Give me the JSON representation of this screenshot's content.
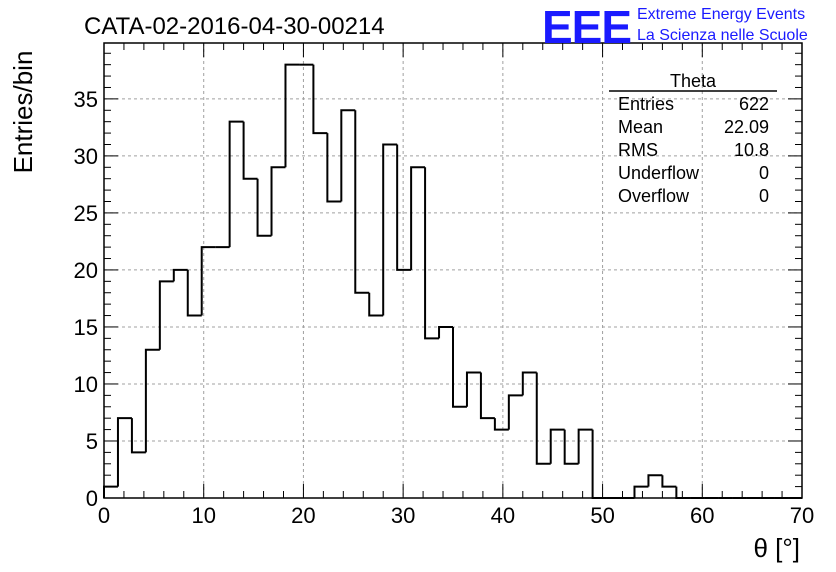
{
  "header": {
    "title": "CATA-02-2016-04-30-00214"
  },
  "logo": {
    "mark": "EEE",
    "line1": "Extreme Energy Events",
    "line2": "La Scienza nelle Scuole",
    "color": "#1a1aff"
  },
  "stats": {
    "name": "Theta",
    "rows": [
      {
        "label": "Entries",
        "value": "622"
      },
      {
        "label": "Mean",
        "value": "22.09"
      },
      {
        "label": "RMS",
        "value": "10.8"
      },
      {
        "label": "Underflow",
        "value": "0"
      },
      {
        "label": "Overflow",
        "value": "0"
      }
    ]
  },
  "chart_data": {
    "type": "bar",
    "histogram": true,
    "title": "CATA-02-2016-04-30-00214",
    "xlabel": "θ [°]",
    "ylabel": "Entries/bin",
    "xlim": [
      0,
      70
    ],
    "ylim": [
      0,
      39.9
    ],
    "grid": true,
    "bin_width": 1.4,
    "bin_edges_start": 0,
    "values": [
      1,
      7,
      4,
      13,
      19,
      20,
      16,
      22,
      22,
      33,
      28,
      23,
      29,
      38,
      38,
      32,
      26,
      34,
      18,
      16,
      31,
      20,
      29,
      14,
      15,
      8,
      11,
      7,
      6,
      9,
      11,
      3,
      6,
      3,
      6,
      0,
      0,
      0,
      1,
      2,
      1,
      0,
      0,
      0,
      0,
      0,
      0,
      0,
      0,
      0
    ],
    "xticks": [
      "0",
      "10",
      "20",
      "30",
      "40",
      "50",
      "60",
      "70"
    ],
    "yticks": [
      "0",
      "5",
      "10",
      "15",
      "20",
      "25",
      "30",
      "35"
    ],
    "line_color": "#000000",
    "grid_color": "#a0a0a0"
  }
}
